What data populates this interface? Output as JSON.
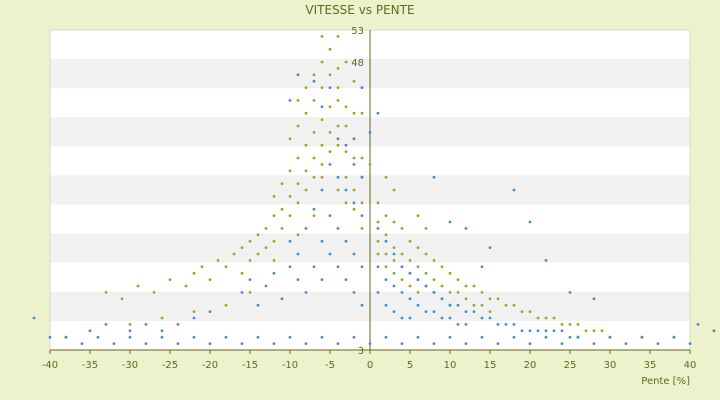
{
  "chart_data": {
    "type": "scatter",
    "title": "VITESSE vs PENTE",
    "xlabel": "Pente [%]",
    "ylabel": "",
    "xlim": [
      -40,
      40
    ],
    "ylim": [
      3,
      53
    ],
    "x_ticks": [
      -40,
      -35,
      -30,
      -25,
      -20,
      -15,
      -10,
      -5,
      0,
      5,
      10,
      15,
      20,
      25,
      30,
      35,
      40
    ],
    "y_tick_labels": [
      "3",
      "48",
      "53"
    ],
    "grid": "alternating horizontal bands",
    "series": [
      {
        "color": "#9aa81c",
        "points": [
          [
            -33,
            12
          ],
          [
            -31,
            11
          ],
          [
            -29,
            13
          ],
          [
            -27,
            12
          ],
          [
            -25,
            14
          ],
          [
            -23,
            13
          ],
          [
            -22,
            15
          ],
          [
            -21,
            16
          ],
          [
            -20,
            14
          ],
          [
            -19,
            17
          ],
          [
            -18,
            16
          ],
          [
            -17,
            18
          ],
          [
            -16,
            19
          ],
          [
            -16,
            15
          ],
          [
            -15,
            20
          ],
          [
            -15,
            17
          ],
          [
            -14,
            21
          ],
          [
            -14,
            18
          ],
          [
            -13,
            22
          ],
          [
            -13,
            19
          ],
          [
            -12,
            24
          ],
          [
            -12,
            20
          ],
          [
            -12,
            27
          ],
          [
            -11,
            25
          ],
          [
            -11,
            22
          ],
          [
            -11,
            29
          ],
          [
            -10,
            27
          ],
          [
            -10,
            24
          ],
          [
            -10,
            31
          ],
          [
            -10,
            36
          ],
          [
            -9,
            29
          ],
          [
            -9,
            26
          ],
          [
            -9,
            33
          ],
          [
            -9,
            38
          ],
          [
            -9,
            42
          ],
          [
            -8,
            31
          ],
          [
            -8,
            28
          ],
          [
            -8,
            35
          ],
          [
            -8,
            40
          ],
          [
            -8,
            44
          ],
          [
            -7,
            33
          ],
          [
            -7,
            30
          ],
          [
            -7,
            37
          ],
          [
            -7,
            42
          ],
          [
            -7,
            46
          ],
          [
            -6,
            35
          ],
          [
            -6,
            32
          ],
          [
            -6,
            39
          ],
          [
            -6,
            44
          ],
          [
            -6,
            48
          ],
          [
            -5,
            37
          ],
          [
            -5,
            34
          ],
          [
            -5,
            41
          ],
          [
            -5,
            46
          ],
          [
            -5,
            50
          ],
          [
            -4,
            38
          ],
          [
            -4,
            35
          ],
          [
            -4,
            42
          ],
          [
            -4,
            47
          ],
          [
            -4,
            44
          ],
          [
            -3,
            38
          ],
          [
            -3,
            34
          ],
          [
            -3,
            41
          ],
          [
            -3,
            30
          ],
          [
            -2,
            36
          ],
          [
            -2,
            33
          ],
          [
            -2,
            28
          ],
          [
            -2,
            25
          ],
          [
            -1,
            33
          ],
          [
            -1,
            30
          ],
          [
            -1,
            26
          ],
          [
            -1,
            22
          ],
          [
            1,
            26
          ],
          [
            1,
            23
          ],
          [
            1,
            20
          ],
          [
            1,
            18
          ],
          [
            2,
            24
          ],
          [
            2,
            21
          ],
          [
            2,
            18
          ],
          [
            2,
            16
          ],
          [
            3,
            23
          ],
          [
            3,
            19
          ],
          [
            3,
            17
          ],
          [
            3,
            15
          ],
          [
            4,
            22
          ],
          [
            4,
            18
          ],
          [
            4,
            16
          ],
          [
            4,
            14
          ],
          [
            5,
            20
          ],
          [
            5,
            17
          ],
          [
            5,
            15
          ],
          [
            5,
            13
          ],
          [
            6,
            19
          ],
          [
            6,
            16
          ],
          [
            6,
            14
          ],
          [
            6,
            12
          ],
          [
            7,
            18
          ],
          [
            7,
            15
          ],
          [
            7,
            13
          ],
          [
            8,
            17
          ],
          [
            8,
            14
          ],
          [
            8,
            12
          ],
          [
            9,
            16
          ],
          [
            9,
            13
          ],
          [
            9,
            11
          ],
          [
            10,
            15
          ],
          [
            10,
            12
          ],
          [
            10,
            10
          ],
          [
            11,
            14
          ],
          [
            11,
            12
          ],
          [
            12,
            13
          ],
          [
            12,
            11
          ],
          [
            13,
            13
          ],
          [
            13,
            10
          ],
          [
            14,
            12
          ],
          [
            14,
            10
          ],
          [
            15,
            11
          ],
          [
            15,
            9
          ],
          [
            16,
            11
          ],
          [
            17,
            10
          ],
          [
            18,
            10
          ],
          [
            19,
            9
          ],
          [
            20,
            9
          ],
          [
            21,
            8
          ],
          [
            22,
            8
          ],
          [
            23,
            8
          ],
          [
            24,
            7
          ],
          [
            25,
            7
          ],
          [
            26,
            7
          ],
          [
            27,
            6
          ],
          [
            28,
            6
          ],
          [
            29,
            6
          ],
          [
            30,
            5
          ],
          [
            -6,
            30
          ],
          [
            -4,
            28
          ],
          [
            -3,
            26
          ],
          [
            0,
            32
          ],
          [
            -1,
            40
          ],
          [
            2,
            30
          ],
          [
            6,
            24
          ],
          [
            7,
            22
          ],
          [
            3,
            28
          ],
          [
            -7,
            24
          ],
          [
            -9,
            21
          ],
          [
            -12,
            17
          ],
          [
            -15,
            12
          ],
          [
            -18,
            10
          ],
          [
            -22,
            9
          ],
          [
            -26,
            8
          ],
          [
            -30,
            7
          ],
          [
            -35,
            6
          ],
          [
            -38,
            5
          ],
          [
            38,
            5
          ],
          [
            34,
            5
          ],
          [
            -4,
            52
          ],
          [
            -6,
            52
          ],
          [
            -3,
            48
          ],
          [
            -2,
            45
          ],
          [
            -1,
            44
          ],
          [
            -2,
            40
          ]
        ]
      },
      {
        "color": "#3f8fd0",
        "points": [
          [
            -38,
            5
          ],
          [
            -36,
            4
          ],
          [
            -34,
            5
          ],
          [
            -32,
            4
          ],
          [
            -30,
            5
          ],
          [
            -28,
            4
          ],
          [
            -26,
            5
          ],
          [
            -24,
            4
          ],
          [
            -22,
            5
          ],
          [
            -20,
            4
          ],
          [
            -18,
            5
          ],
          [
            -16,
            4
          ],
          [
            -14,
            5
          ],
          [
            -12,
            4
          ],
          [
            -10,
            5
          ],
          [
            -8,
            4
          ],
          [
            -6,
            5
          ],
          [
            -4,
            4
          ],
          [
            -2,
            5
          ],
          [
            0,
            4
          ],
          [
            2,
            5
          ],
          [
            4,
            4
          ],
          [
            6,
            5
          ],
          [
            8,
            4
          ],
          [
            10,
            5
          ],
          [
            12,
            4
          ],
          [
            14,
            5
          ],
          [
            16,
            4
          ],
          [
            18,
            5
          ],
          [
            20,
            4
          ],
          [
            22,
            5
          ],
          [
            24,
            4
          ],
          [
            26,
            5
          ],
          [
            28,
            4
          ],
          [
            30,
            5
          ],
          [
            32,
            4
          ],
          [
            34,
            5
          ],
          [
            36,
            4
          ],
          [
            38,
            5
          ],
          [
            40,
            4
          ],
          [
            -16,
            12
          ],
          [
            -15,
            14
          ],
          [
            -14,
            10
          ],
          [
            -13,
            13
          ],
          [
            -12,
            15
          ],
          [
            -11,
            11
          ],
          [
            -10,
            16
          ],
          [
            -10,
            20
          ],
          [
            -9,
            14
          ],
          [
            -9,
            18
          ],
          [
            -8,
            22
          ],
          [
            -8,
            12
          ],
          [
            -7,
            25
          ],
          [
            -7,
            16
          ],
          [
            -6,
            28
          ],
          [
            -6,
            20
          ],
          [
            -6,
            14
          ],
          [
            -5,
            32
          ],
          [
            -5,
            24
          ],
          [
            -5,
            18
          ],
          [
            -5,
            44
          ],
          [
            -4,
            36
          ],
          [
            -4,
            30
          ],
          [
            -4,
            22
          ],
          [
            -4,
            16
          ],
          [
            -3,
            35
          ],
          [
            -3,
            28
          ],
          [
            -3,
            20
          ],
          [
            -3,
            14
          ],
          [
            -2,
            32
          ],
          [
            -2,
            26
          ],
          [
            -2,
            18
          ],
          [
            -2,
            12
          ],
          [
            -1,
            30
          ],
          [
            -1,
            24
          ],
          [
            -1,
            16
          ],
          [
            -1,
            10
          ],
          [
            1,
            22
          ],
          [
            1,
            16
          ],
          [
            1,
            12
          ],
          [
            2,
            20
          ],
          [
            2,
            14
          ],
          [
            2,
            10
          ],
          [
            3,
            18
          ],
          [
            3,
            13
          ],
          [
            3,
            9
          ],
          [
            4,
            16
          ],
          [
            4,
            12
          ],
          [
            4,
            8
          ],
          [
            5,
            15
          ],
          [
            5,
            11
          ],
          [
            5,
            8
          ],
          [
            6,
            14
          ],
          [
            6,
            10
          ],
          [
            7,
            13
          ],
          [
            7,
            9
          ],
          [
            8,
            12
          ],
          [
            8,
            9
          ],
          [
            9,
            11
          ],
          [
            9,
            8
          ],
          [
            10,
            10
          ],
          [
            10,
            8
          ],
          [
            11,
            10
          ],
          [
            11,
            7
          ],
          [
            12,
            9
          ],
          [
            12,
            7
          ],
          [
            13,
            9
          ],
          [
            14,
            8
          ],
          [
            15,
            8
          ],
          [
            16,
            7
          ],
          [
            17,
            7
          ],
          [
            18,
            7
          ],
          [
            19,
            6
          ],
          [
            20,
            6
          ],
          [
            21,
            6
          ],
          [
            22,
            6
          ],
          [
            23,
            6
          ],
          [
            24,
            6
          ],
          [
            25,
            5
          ],
          [
            26,
            5
          ],
          [
            8,
            30
          ],
          [
            10,
            23
          ],
          [
            12,
            22
          ],
          [
            14,
            16
          ],
          [
            15,
            19
          ],
          [
            18,
            28
          ],
          [
            20,
            23
          ],
          [
            22,
            17
          ],
          [
            25,
            12
          ],
          [
            28,
            11
          ],
          [
            -20,
            9
          ],
          [
            -22,
            8
          ],
          [
            -24,
            7
          ],
          [
            -26,
            6
          ],
          [
            -28,
            7
          ],
          [
            -30,
            6
          ],
          [
            -33,
            7
          ],
          [
            -35,
            6
          ],
          [
            -40,
            5
          ],
          [
            -42,
            8
          ],
          [
            43,
            6
          ],
          [
            41,
            7
          ],
          [
            -9,
            46
          ],
          [
            -10,
            42
          ],
          [
            -7,
            45
          ],
          [
            -2,
            36
          ],
          [
            -1,
            44
          ],
          [
            1,
            40
          ],
          [
            -6,
            41
          ],
          [
            0,
            37
          ]
        ]
      }
    ]
  }
}
